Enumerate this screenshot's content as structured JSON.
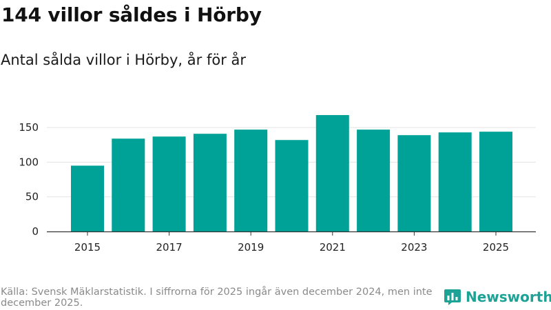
{
  "header": {
    "title": "144 villor såldes i Hörby",
    "subtitle": "Antal sålda villor i Hörby, år för år"
  },
  "footer": {
    "source": "Källa: Svensk Mäklarstatistik. I siffrorna för 2025 ingår även december 2024, men inte december 2025.",
    "brand": "Newsworthy",
    "brand_icon": "bar-chart-logo-icon"
  },
  "colors": {
    "bar": "#00a196",
    "grid": "#e3e3e3",
    "axis": "#333333",
    "brand": "#1fa296"
  },
  "chart_data": {
    "type": "bar",
    "title": "Antal sålda villor i Hörby, år för år",
    "xlabel": "",
    "ylabel": "",
    "categories": [
      "2015",
      "2016",
      "2017",
      "2018",
      "2019",
      "2020",
      "2021",
      "2022",
      "2023",
      "2024",
      "2025"
    ],
    "values": [
      95,
      134,
      137,
      141,
      147,
      132,
      168,
      147,
      139,
      143,
      144
    ],
    "x_tick_labels": [
      "2015",
      "2017",
      "2019",
      "2021",
      "2023",
      "2025"
    ],
    "y_ticks": [
      0,
      50,
      100,
      150
    ],
    "ylim": [
      0,
      175
    ],
    "grid": true,
    "legend": "none"
  }
}
